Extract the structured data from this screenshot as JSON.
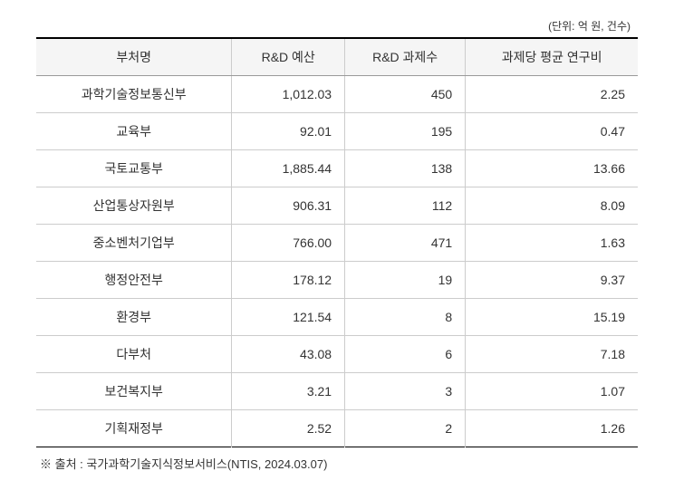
{
  "unit_label": "(단위: 억 원, 건수)",
  "columns": [
    "부처명",
    "R&D 예산",
    "R&D 과제수",
    "과제당 평균 연구비"
  ],
  "rows": [
    {
      "name": "과학기술정보통신부",
      "budget": "1,012.03",
      "count": "450",
      "avg": "2.25"
    },
    {
      "name": "교육부",
      "budget": "92.01",
      "count": "195",
      "avg": "0.47"
    },
    {
      "name": "국토교통부",
      "budget": "1,885.44",
      "count": "138",
      "avg": "13.66"
    },
    {
      "name": "산업통상자원부",
      "budget": "906.31",
      "count": "112",
      "avg": "8.09"
    },
    {
      "name": "중소벤처기업부",
      "budget": "766.00",
      "count": "471",
      "avg": "1.63"
    },
    {
      "name": "행정안전부",
      "budget": "178.12",
      "count": "19",
      "avg": "9.37"
    },
    {
      "name": "환경부",
      "budget": "121.54",
      "count": "8",
      "avg": "15.19"
    },
    {
      "name": "다부처",
      "budget": "43.08",
      "count": "6",
      "avg": "7.18"
    },
    {
      "name": "보건복지부",
      "budget": "3.21",
      "count": "3",
      "avg": "1.07"
    },
    {
      "name": "기획재정부",
      "budget": "2.52",
      "count": "2",
      "avg": "1.26"
    }
  ],
  "source_note": "※ 출처 : 국가과학기술지식정보서비스(NTIS, 2024.03.07)",
  "styling": {
    "header_bg": "#f5f5f5",
    "border_color_strong": "#000000",
    "border_color_light": "#cccccc",
    "text_color": "#333333",
    "font_size_body": 14,
    "font_size_unit": 12,
    "font_size_source": 13
  }
}
